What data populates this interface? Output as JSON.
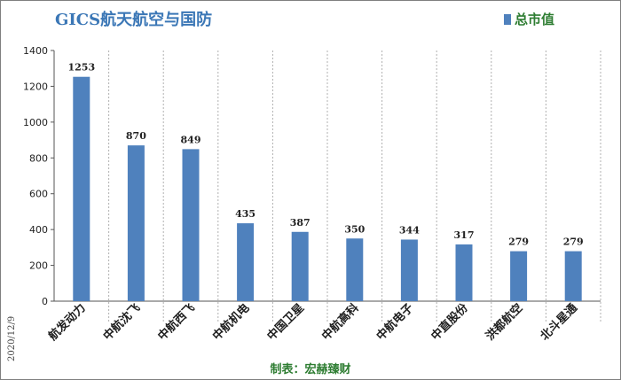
{
  "chart_data": {
    "type": "bar",
    "title": "GICS航天航空与国防",
    "categories": [
      "航发动力",
      "中航沈飞",
      "中航西飞",
      "中航机电",
      "中国卫星",
      "中航高科",
      "中航电子",
      "中直股份",
      "洪都航空",
      "北斗星通"
    ],
    "series": [
      {
        "name": "总市值",
        "values": [
          1253,
          870,
          849,
          435,
          387,
          350,
          344,
          317,
          279,
          279
        ]
      }
    ],
    "ylim": [
      0,
      1400
    ],
    "yticks": [
      0,
      200,
      400,
      600,
      800,
      1000,
      1200,
      1400
    ],
    "grid": "vertical dashed separators",
    "legend": "top-right",
    "bar_color": "#4f81bd"
  },
  "side_note": "2020/12/9",
  "source": "制表：宏赫臻财"
}
